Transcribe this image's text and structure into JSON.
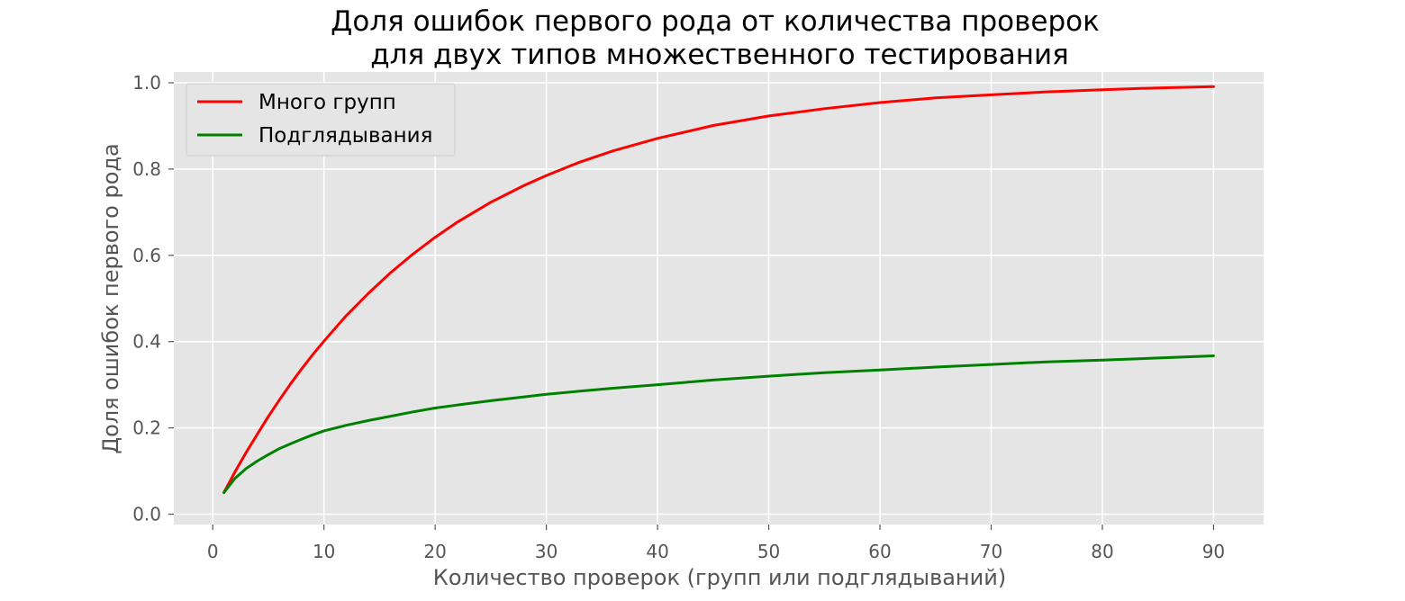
{
  "chart_data": {
    "type": "line",
    "title_lines": [
      "Доля ошибок первого рода от количества проверок",
      "для двух типов множественного тестирования"
    ],
    "xlabel": "Количество проверок (групп или подглядываний)",
    "ylabel": "Доля ошибок первого рода",
    "xlim": [
      -3.5,
      94.5
    ],
    "ylim": [
      -0.024,
      1.025
    ],
    "xticks": [
      0,
      10,
      20,
      30,
      40,
      50,
      60,
      70,
      80,
      90
    ],
    "yticks": [
      0.0,
      0.2,
      0.4,
      0.6,
      0.8,
      1.0
    ],
    "xtick_labels": [
      "0",
      "10",
      "20",
      "30",
      "40",
      "50",
      "60",
      "70",
      "80",
      "90"
    ],
    "ytick_labels": [
      "0.0",
      "0.2",
      "0.4",
      "0.6",
      "0.8",
      "1.0"
    ],
    "grid": true,
    "legend_position": "top-left",
    "background_color": "#e5e5e5",
    "grid_color": "#ffffff",
    "series": [
      {
        "name": "Много групп",
        "color": "#ff0000",
        "x": [
          1,
          2,
          3,
          4,
          5,
          6,
          7,
          8,
          9,
          10,
          12,
          14,
          16,
          18,
          20,
          22,
          25,
          28,
          30,
          33,
          36,
          40,
          45,
          50,
          55,
          60,
          65,
          70,
          75,
          80,
          85,
          90
        ],
        "y": [
          0.05,
          0.098,
          0.143,
          0.185,
          0.226,
          0.265,
          0.302,
          0.337,
          0.37,
          0.401,
          0.46,
          0.512,
          0.56,
          0.603,
          0.642,
          0.677,
          0.723,
          0.762,
          0.785,
          0.816,
          0.842,
          0.871,
          0.901,
          0.923,
          0.94,
          0.954,
          0.965,
          0.972,
          0.979,
          0.984,
          0.988,
          0.991
        ]
      },
      {
        "name": "Подглядывания",
        "color": "#008000",
        "x": [
          1,
          2,
          3,
          4,
          5,
          6,
          7,
          8,
          9,
          10,
          12,
          14,
          16,
          18,
          20,
          22,
          25,
          28,
          30,
          33,
          36,
          40,
          45,
          50,
          55,
          60,
          65,
          70,
          75,
          80,
          85,
          90
        ],
        "y": [
          0.05,
          0.083,
          0.106,
          0.123,
          0.138,
          0.152,
          0.163,
          0.174,
          0.184,
          0.193,
          0.206,
          0.217,
          0.227,
          0.237,
          0.246,
          0.253,
          0.263,
          0.272,
          0.278,
          0.285,
          0.292,
          0.3,
          0.311,
          0.32,
          0.328,
          0.334,
          0.341,
          0.347,
          0.353,
          0.357,
          0.362,
          0.367
        ]
      }
    ]
  }
}
